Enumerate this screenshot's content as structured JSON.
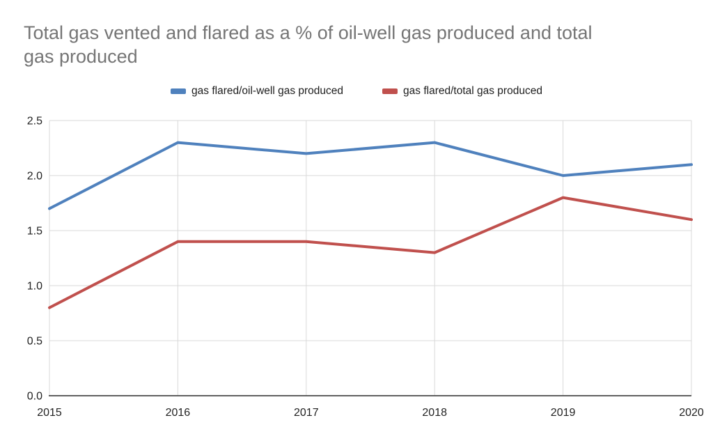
{
  "chart_data": {
    "type": "line",
    "title": "Total gas vented and flared as a % of oil-well gas produced and total gas produced",
    "x": [
      "2015",
      "2016",
      "2017",
      "2018",
      "2019",
      "2020"
    ],
    "series": [
      {
        "name": "gas flared/oil-well gas produced",
        "color": "#4f81bd",
        "values": [
          1.7,
          2.3,
          2.2,
          2.3,
          2.0,
          2.1
        ]
      },
      {
        "name": "gas flared/total gas produced",
        "color": "#c0504d",
        "values": [
          0.8,
          1.4,
          1.4,
          1.3,
          1.8,
          1.6
        ]
      }
    ],
    "xlabel": "",
    "ylabel": "",
    "ylim": [
      0,
      2.5
    ],
    "yticks": [
      0,
      0.5,
      1,
      1.5,
      2,
      2.5
    ],
    "ytick_labels": [
      "0.0",
      "0.5",
      "1.0",
      "1.5",
      "2.0",
      "2.5"
    ],
    "grid": true,
    "legend_position": "top",
    "line_width": 4,
    "colors": {
      "title_text": "#757575",
      "grid": "#d9d9d9",
      "axis": "#5f5f5f",
      "tick_text": "#222222",
      "background": "#ffffff"
    }
  }
}
